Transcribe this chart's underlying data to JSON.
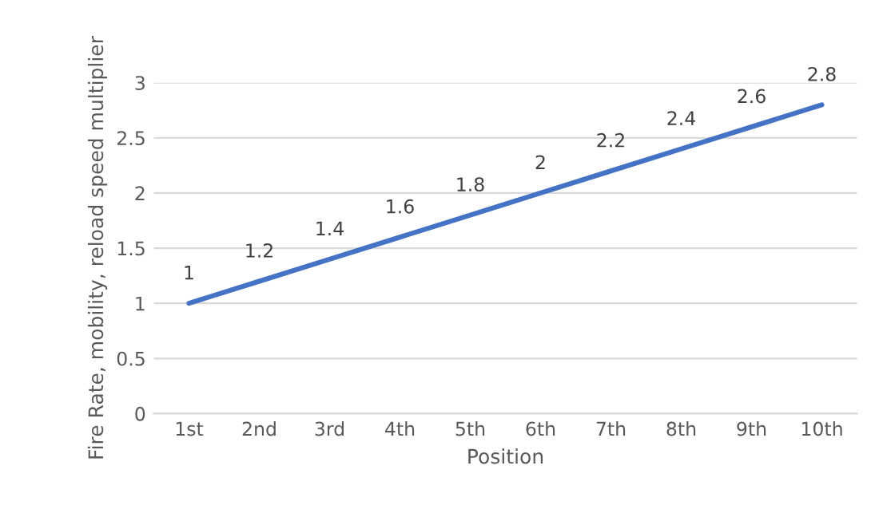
{
  "chart_data": {
    "type": "line",
    "xlabel": "Position",
    "ylabel": "Fire Rate, mobility, reload speed multiplier",
    "categories": [
      "1st",
      "2nd",
      "3rd",
      "4th",
      "5th",
      "6th",
      "7th",
      "8th",
      "9th",
      "10th"
    ],
    "series": [
      {
        "color": "#4472c4",
        "values": [
          1,
          1.2,
          1.4,
          1.6,
          1.8,
          2,
          2.2,
          2.4,
          2.6,
          2.8
        ]
      }
    ],
    "ylim": [
      0,
      3
    ],
    "yticks": [
      0,
      0.5,
      1,
      1.5,
      2,
      2.5,
      3
    ],
    "grid": "y",
    "data_labels": true,
    "marker": "none",
    "line_style": "solid"
  }
}
